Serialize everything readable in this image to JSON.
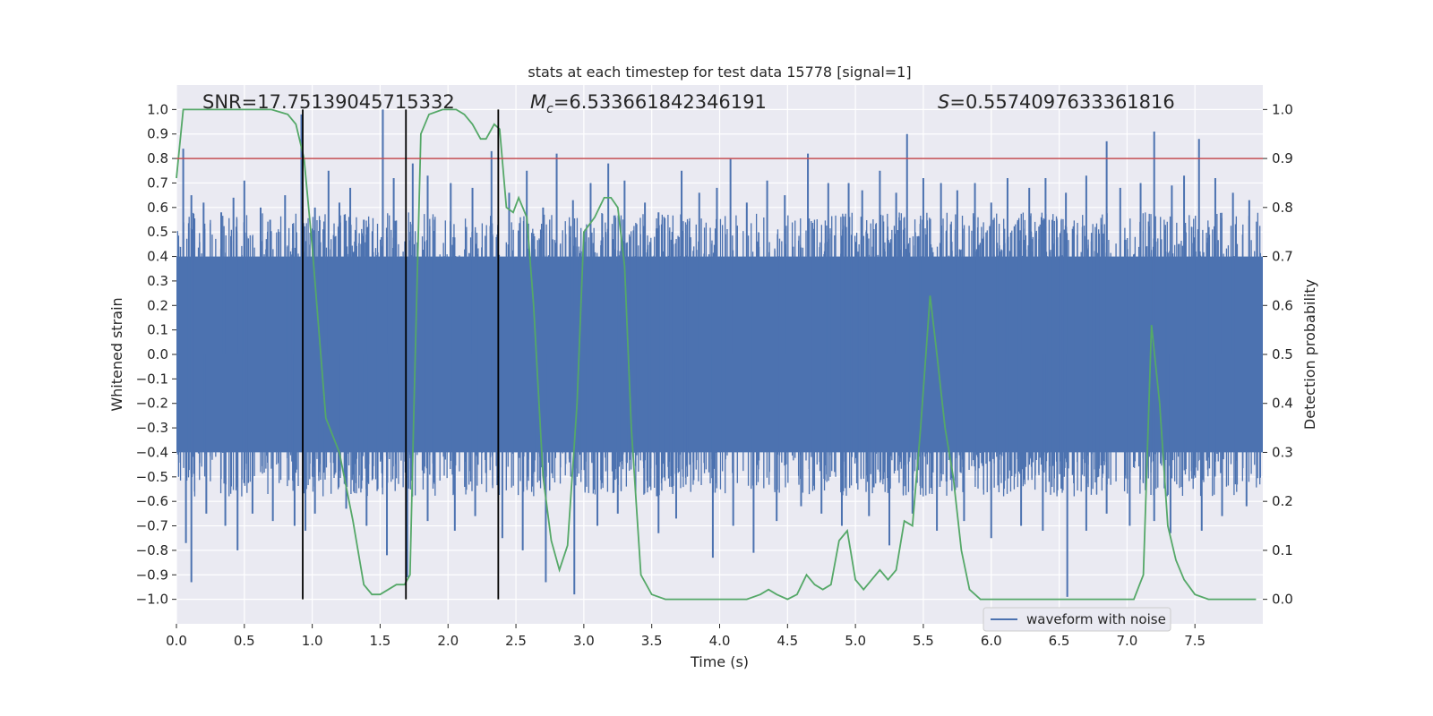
{
  "chart_data": {
    "type": "line",
    "title": "stats at each timestep for test data 15778 [signal=1]",
    "xlabel": "Time (s)",
    "ylabel": "Whitened strain",
    "y2label": "Detection probability",
    "xlim": [
      0,
      8
    ],
    "ylim": [
      -1.1,
      1.1
    ],
    "y2lim": [
      -0.05,
      1.05
    ],
    "xticks": [
      0.0,
      0.5,
      1.0,
      1.5,
      2.0,
      2.5,
      3.0,
      3.5,
      4.0,
      4.5,
      5.0,
      5.5,
      6.0,
      6.5,
      7.0,
      7.5
    ],
    "yticks": [
      1.0,
      0.9,
      0.8,
      0.7,
      0.6,
      0.5,
      0.4,
      0.3,
      0.2,
      0.1,
      0.0,
      -0.1,
      -0.2,
      -0.3,
      -0.4,
      -0.5,
      -0.6,
      -0.7,
      -0.8,
      -0.9,
      -1.0
    ],
    "y2ticks": [
      1.0,
      0.9,
      0.8,
      0.7,
      0.6,
      0.5,
      0.4,
      0.3,
      0.2,
      0.1,
      0.0
    ],
    "annotations": {
      "snr": "SNR=17.75139045715332",
      "mc_symbol": "M",
      "mc_sub": "c",
      "mc_value": "=6.533661842346191",
      "s_symbol": "S",
      "s_value": "=0.5574097633361816"
    },
    "threshold": {
      "value": 0.9,
      "axis": "right",
      "color": "#c44e52"
    },
    "vlines": [
      0.93,
      1.69,
      2.37
    ],
    "waveform": {
      "name": "waveform with noise",
      "color": "#4c72b0",
      "band_upper": 0.4,
      "band_lower": -0.4,
      "spikes_up": [
        [
          0.05,
          0.84
        ],
        [
          0.11,
          0.65
        ],
        [
          0.2,
          0.62
        ],
        [
          0.33,
          0.58
        ],
        [
          0.42,
          0.64
        ],
        [
          0.5,
          0.71
        ],
        [
          0.62,
          0.6
        ],
        [
          0.69,
          0.55
        ],
        [
          0.8,
          0.65
        ],
        [
          0.92,
          0.98
        ],
        [
          1.02,
          0.6
        ],
        [
          1.12,
          0.75
        ],
        [
          1.2,
          0.62
        ],
        [
          1.28,
          0.68
        ],
        [
          1.38,
          0.55
        ],
        [
          1.52,
          1.0
        ],
        [
          1.6,
          0.72
        ],
        [
          1.74,
          0.78
        ],
        [
          1.85,
          0.73
        ],
        [
          2.02,
          0.7
        ],
        [
          2.18,
          0.68
        ],
        [
          2.32,
          0.83
        ],
        [
          2.45,
          0.66
        ],
        [
          2.58,
          0.75
        ],
        [
          2.7,
          0.6
        ],
        [
          2.8,
          0.82
        ],
        [
          2.92,
          0.63
        ],
        [
          3.05,
          0.7
        ],
        [
          3.18,
          0.78
        ],
        [
          3.3,
          0.71
        ],
        [
          3.45,
          0.62
        ],
        [
          3.55,
          0.58
        ],
        [
          3.72,
          0.75
        ],
        [
          3.85,
          0.66
        ],
        [
          3.98,
          0.68
        ],
        [
          4.08,
          0.8
        ],
        [
          4.2,
          0.62
        ],
        [
          4.35,
          0.71
        ],
        [
          4.48,
          0.65
        ],
        [
          4.65,
          0.82
        ],
        [
          4.8,
          0.7
        ],
        [
          4.95,
          0.7
        ],
        [
          5.05,
          0.67
        ],
        [
          5.18,
          0.75
        ],
        [
          5.3,
          0.66
        ],
        [
          5.38,
          0.9
        ],
        [
          5.5,
          0.72
        ],
        [
          5.63,
          0.7
        ],
        [
          5.75,
          0.67
        ],
        [
          5.88,
          0.7
        ],
        [
          6.0,
          0.62
        ],
        [
          6.12,
          0.72
        ],
        [
          6.28,
          0.68
        ],
        [
          6.4,
          0.72
        ],
        [
          6.55,
          0.66
        ],
        [
          6.7,
          0.73
        ],
        [
          6.85,
          0.87
        ],
        [
          6.95,
          0.68
        ],
        [
          7.1,
          0.7
        ],
        [
          7.2,
          0.91
        ],
        [
          7.33,
          0.69
        ],
        [
          7.42,
          0.73
        ],
        [
          7.53,
          0.88
        ],
        [
          7.65,
          0.72
        ],
        [
          7.78,
          0.66
        ],
        [
          7.9,
          0.63
        ]
      ],
      "spikes_down": [
        [
          0.07,
          -0.77
        ],
        [
          0.11,
          -0.93
        ],
        [
          0.22,
          -0.65
        ],
        [
          0.36,
          -0.7
        ],
        [
          0.45,
          -0.8
        ],
        [
          0.56,
          -0.65
        ],
        [
          0.71,
          -0.68
        ],
        [
          0.87,
          -0.7
        ],
        [
          0.95,
          -0.72
        ],
        [
          1.02,
          -0.65
        ],
        [
          1.25,
          -0.63
        ],
        [
          1.4,
          -0.7
        ],
        [
          1.55,
          -0.82
        ],
        [
          1.7,
          -0.91
        ],
        [
          1.85,
          -0.68
        ],
        [
          2.05,
          -0.72
        ],
        [
          2.2,
          -0.66
        ],
        [
          2.4,
          -0.75
        ],
        [
          2.55,
          -0.8
        ],
        [
          2.72,
          -0.93
        ],
        [
          2.93,
          -0.98
        ],
        [
          3.1,
          -0.7
        ],
        [
          3.25,
          -0.65
        ],
        [
          3.55,
          -0.73
        ],
        [
          3.68,
          -0.67
        ],
        [
          3.95,
          -0.83
        ],
        [
          4.1,
          -0.7
        ],
        [
          4.25,
          -0.81
        ],
        [
          4.42,
          -0.68
        ],
        [
          4.6,
          -0.62
        ],
        [
          4.75,
          -0.65
        ],
        [
          4.9,
          -0.7
        ],
        [
          5.1,
          -0.66
        ],
        [
          5.25,
          -0.78
        ],
        [
          5.42,
          -0.65
        ],
        [
          5.6,
          -0.72
        ],
        [
          5.8,
          -0.68
        ],
        [
          6.0,
          -0.75
        ],
        [
          6.22,
          -0.7
        ],
        [
          6.38,
          -0.72
        ],
        [
          6.56,
          -0.99
        ],
        [
          6.7,
          -0.72
        ],
        [
          6.85,
          -0.65
        ],
        [
          7.02,
          -0.7
        ],
        [
          7.2,
          -0.68
        ],
        [
          7.32,
          -0.73
        ],
        [
          7.55,
          -0.72
        ],
        [
          7.7,
          -0.66
        ],
        [
          7.88,
          -0.62
        ]
      ]
    },
    "probability": {
      "color": "#55a868",
      "points": [
        [
          0.0,
          0.86
        ],
        [
          0.05,
          1.0
        ],
        [
          0.2,
          1.0
        ],
        [
          0.4,
          1.0
        ],
        [
          0.6,
          1.0
        ],
        [
          0.7,
          1.0
        ],
        [
          0.82,
          0.99
        ],
        [
          0.88,
          0.97
        ],
        [
          0.94,
          0.9
        ],
        [
          1.0,
          0.72
        ],
        [
          1.1,
          0.37
        ],
        [
          1.2,
          0.3
        ],
        [
          1.3,
          0.16
        ],
        [
          1.38,
          0.03
        ],
        [
          1.44,
          0.01
        ],
        [
          1.5,
          0.01
        ],
        [
          1.56,
          0.02
        ],
        [
          1.62,
          0.03
        ],
        [
          1.68,
          0.03
        ],
        [
          1.72,
          0.05
        ],
        [
          1.75,
          0.4
        ],
        [
          1.8,
          0.95
        ],
        [
          1.86,
          0.99
        ],
        [
          1.96,
          1.0
        ],
        [
          2.06,
          1.0
        ],
        [
          2.12,
          0.99
        ],
        [
          2.18,
          0.97
        ],
        [
          2.24,
          0.94
        ],
        [
          2.28,
          0.94
        ],
        [
          2.34,
          0.97
        ],
        [
          2.38,
          0.96
        ],
        [
          2.43,
          0.8
        ],
        [
          2.48,
          0.79
        ],
        [
          2.52,
          0.82
        ],
        [
          2.58,
          0.78
        ],
        [
          2.63,
          0.6
        ],
        [
          2.7,
          0.25
        ],
        [
          2.76,
          0.12
        ],
        [
          2.82,
          0.06
        ],
        [
          2.88,
          0.11
        ],
        [
          2.95,
          0.4
        ],
        [
          3.0,
          0.75
        ],
        [
          3.08,
          0.78
        ],
        [
          3.15,
          0.82
        ],
        [
          3.2,
          0.82
        ],
        [
          3.25,
          0.8
        ],
        [
          3.3,
          0.68
        ],
        [
          3.35,
          0.35
        ],
        [
          3.42,
          0.05
        ],
        [
          3.5,
          0.01
        ],
        [
          3.6,
          0.0
        ],
        [
          3.8,
          0.0
        ],
        [
          4.0,
          0.0
        ],
        [
          4.2,
          0.0
        ],
        [
          4.3,
          0.01
        ],
        [
          4.36,
          0.02
        ],
        [
          4.42,
          0.01
        ],
        [
          4.5,
          0.0
        ],
        [
          4.57,
          0.01
        ],
        [
          4.64,
          0.05
        ],
        [
          4.7,
          0.03
        ],
        [
          4.76,
          0.02
        ],
        [
          4.82,
          0.03
        ],
        [
          4.88,
          0.12
        ],
        [
          4.94,
          0.14
        ],
        [
          5.0,
          0.04
        ],
        [
          5.06,
          0.02
        ],
        [
          5.12,
          0.04
        ],
        [
          5.18,
          0.06
        ],
        [
          5.24,
          0.04
        ],
        [
          5.3,
          0.06
        ],
        [
          5.36,
          0.16
        ],
        [
          5.42,
          0.15
        ],
        [
          5.48,
          0.35
        ],
        [
          5.55,
          0.62
        ],
        [
          5.6,
          0.5
        ],
        [
          5.66,
          0.35
        ],
        [
          5.72,
          0.25
        ],
        [
          5.78,
          0.1
        ],
        [
          5.84,
          0.02
        ],
        [
          5.92,
          0.0
        ],
        [
          6.1,
          0.0
        ],
        [
          6.3,
          0.0
        ],
        [
          6.5,
          0.0
        ],
        [
          6.7,
          0.0
        ],
        [
          6.85,
          0.0
        ],
        [
          6.95,
          0.0
        ],
        [
          7.05,
          0.0
        ],
        [
          7.12,
          0.05
        ],
        [
          7.18,
          0.56
        ],
        [
          7.24,
          0.4
        ],
        [
          7.3,
          0.15
        ],
        [
          7.36,
          0.08
        ],
        [
          7.42,
          0.04
        ],
        [
          7.5,
          0.01
        ],
        [
          7.6,
          0.0
        ],
        [
          7.8,
          0.0
        ],
        [
          7.95,
          0.0
        ]
      ]
    },
    "legend": {
      "label": "waveform with noise",
      "placement": "lower-right"
    }
  }
}
